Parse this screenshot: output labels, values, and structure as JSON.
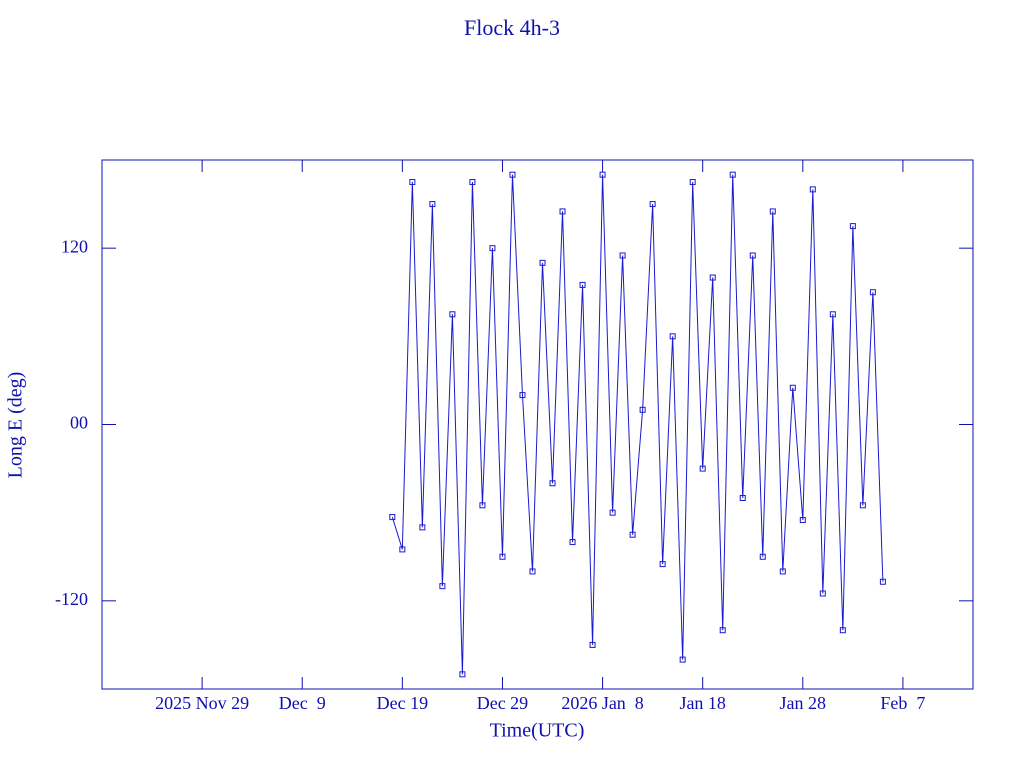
{
  "chart_data": {
    "type": "line",
    "title": "Flock 4h-3",
    "xlabel": "Time(UTC)",
    "ylabel": "Long E (deg)",
    "color": "#1a1ad0",
    "x": [
      "2025-12-18",
      "2025-12-19",
      "2025-12-20",
      "2025-12-21",
      "2025-12-22",
      "2025-12-23",
      "2025-12-24",
      "2025-12-25",
      "2025-12-26",
      "2025-12-27",
      "2025-12-28",
      "2025-12-29",
      "2025-12-30",
      "2025-12-31",
      "2026-01-01",
      "2026-01-02",
      "2026-01-03",
      "2026-01-04",
      "2026-01-05",
      "2026-01-06",
      "2026-01-07",
      "2026-01-08",
      "2026-01-09",
      "2026-01-10",
      "2026-01-11",
      "2026-01-12",
      "2026-01-13",
      "2026-01-14",
      "2026-01-15",
      "2026-01-16",
      "2026-01-17",
      "2026-01-18",
      "2026-01-19",
      "2026-01-20",
      "2026-01-21",
      "2026-01-22",
      "2026-01-23",
      "2026-01-24",
      "2026-01-25",
      "2026-01-26",
      "2026-01-27",
      "2026-01-28",
      "2026-01-29",
      "2026-01-30",
      "2026-01-31",
      "2026-02-01",
      "2026-02-02",
      "2026-02-03",
      "2026-02-04",
      "2026-02-05"
    ],
    "values": [
      -63,
      -85,
      165,
      -70,
      150,
      -110,
      75,
      -170,
      165,
      -55,
      120,
      -90,
      170,
      20,
      -100,
      110,
      -40,
      145,
      -80,
      95,
      -150,
      170,
      -60,
      115,
      -75,
      10,
      150,
      -95,
      60,
      -160,
      165,
      -30,
      100,
      -140,
      170,
      -50,
      115,
      -90,
      145,
      -100,
      25,
      -65,
      160,
      -115,
      75,
      -140,
      135,
      -55,
      90,
      -107
    ],
    "xlim": [
      "2025-11-19",
      "2026-02-14"
    ],
    "xticks": [
      {
        "value": "2025-11-29",
        "label": "2025 Nov 29"
      },
      {
        "value": "2025-12-09",
        "label": "Dec  9"
      },
      {
        "value": "2025-12-19",
        "label": "Dec 19"
      },
      {
        "value": "2025-12-29",
        "label": "Dec 29"
      },
      {
        "value": "2026-01-08",
        "label": "2026 Jan  8"
      },
      {
        "value": "2026-01-18",
        "label": "Jan 18"
      },
      {
        "value": "2026-01-28",
        "label": "Jan 28"
      },
      {
        "value": "2026-02-07",
        "label": "Feb  7"
      }
    ],
    "ylim": [
      -180,
      180
    ],
    "yticks": [
      -120,
      {
        "value": 0,
        "label": "00"
      },
      120
    ]
  }
}
